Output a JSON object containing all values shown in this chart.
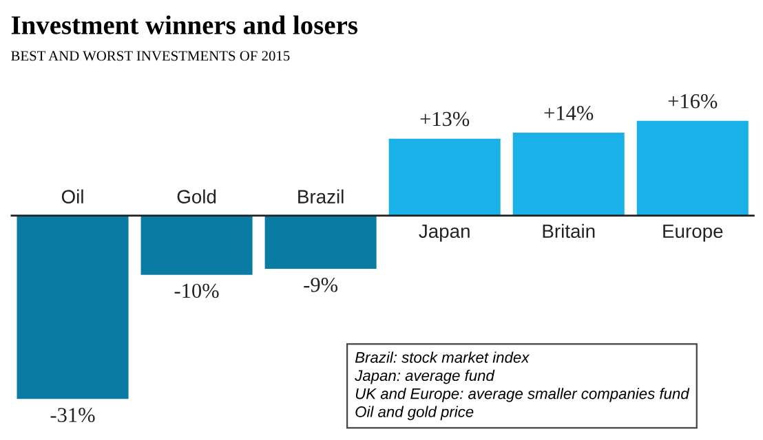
{
  "chart_data": {
    "type": "bar",
    "title": "Investment winners and losers",
    "subtitle": "BEST AND WORST INVESTMENTS OF 2015",
    "categories": [
      "Oil",
      "Gold",
      "Brazil",
      "Japan",
      "Britain",
      "Europe"
    ],
    "values": [
      -31,
      -10,
      -9,
      13,
      14,
      16
    ],
    "colors": [
      "#0a7ba3",
      "#0a7ba3",
      "#0a7ba3",
      "#1ab0e8",
      "#1ab0e8",
      "#1ab0e8"
    ],
    "value_labels": [
      "-31%",
      "-10%",
      "-9%",
      "+13%",
      "+14%",
      "+16%"
    ],
    "annotations": [
      "Brazil: stock market index",
      "Japan: average fund",
      "UK and Europe: average smaller companies fund",
      "Oil and gold price"
    ],
    "legend": false
  }
}
